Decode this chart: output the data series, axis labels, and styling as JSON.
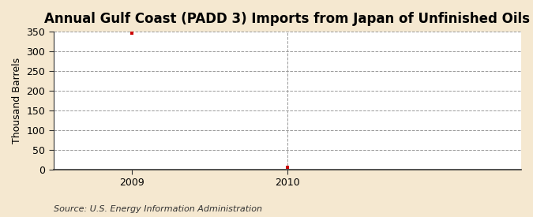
{
  "title": "Annual Gulf Coast (PADD 3) Imports from Japan of Unfinished Oils",
  "ylabel": "Thousand Barrels",
  "xlabel": "",
  "years": [
    2009,
    2010
  ],
  "values": [
    346,
    5
  ],
  "marker_color": "#cc0000",
  "ylim": [
    0,
    350
  ],
  "yticks": [
    0,
    50,
    100,
    150,
    200,
    250,
    300,
    350
  ],
  "xlim": [
    2008.5,
    2011.5
  ],
  "xticks": [
    2009,
    2010
  ],
  "plot_bg_color": "#ffffff",
  "outer_bg_color": "#f5e8d0",
  "grid_color": "#999999",
  "spine_color": "#333333",
  "source_text": "Source: U.S. Energy Information Administration",
  "title_fontsize": 12,
  "axis_fontsize": 9,
  "tick_fontsize": 9,
  "source_fontsize": 8
}
